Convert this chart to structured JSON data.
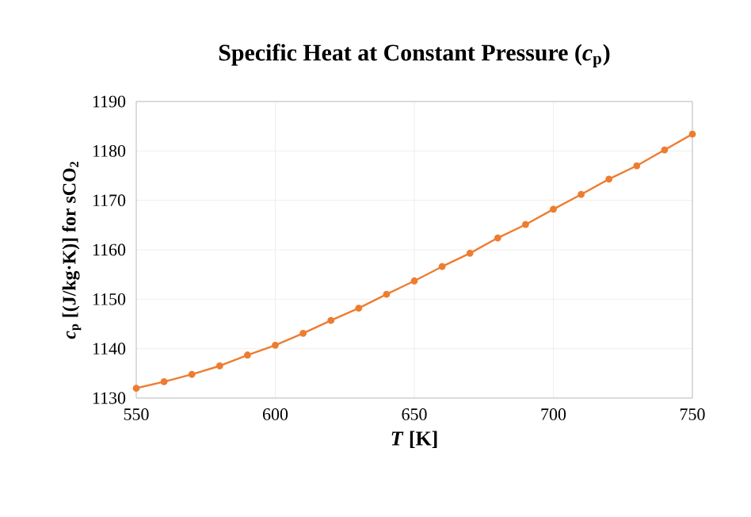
{
  "chart_data": {
    "type": "line",
    "title": "Specific Heat at Constant Pressure (*c*$_{p}$)",
    "xlabel": "*T* [K]",
    "ylabel": "*c*$_{p}$ [(J/kg·K)]  for sCO$_{2}$",
    "x": [
      550,
      560,
      570,
      580,
      590,
      600,
      610,
      620,
      630,
      640,
      650,
      660,
      670,
      680,
      690,
      700,
      710,
      720,
      730,
      740,
      750
    ],
    "series": [
      {
        "color": "#ed7d31",
        "values": [
          1132.0,
          1133.3,
          1134.8,
          1136.5,
          1138.7,
          1140.7,
          1143.1,
          1145.7,
          1148.2,
          1151.0,
          1153.7,
          1156.6,
          1159.3,
          1162.4,
          1165.1,
          1168.2,
          1171.2,
          1174.3,
          1177.0,
          1180.2,
          1183.4
        ]
      }
    ],
    "xlim": [
      550,
      750
    ],
    "ylim": [
      1130,
      1190
    ],
    "xticks": [
      550,
      600,
      650,
      700,
      750
    ],
    "yticks": [
      1130,
      1140,
      1150,
      1160,
      1170,
      1180,
      1190
    ],
    "grid": true,
    "marker": "circle",
    "line_style": "solid"
  }
}
